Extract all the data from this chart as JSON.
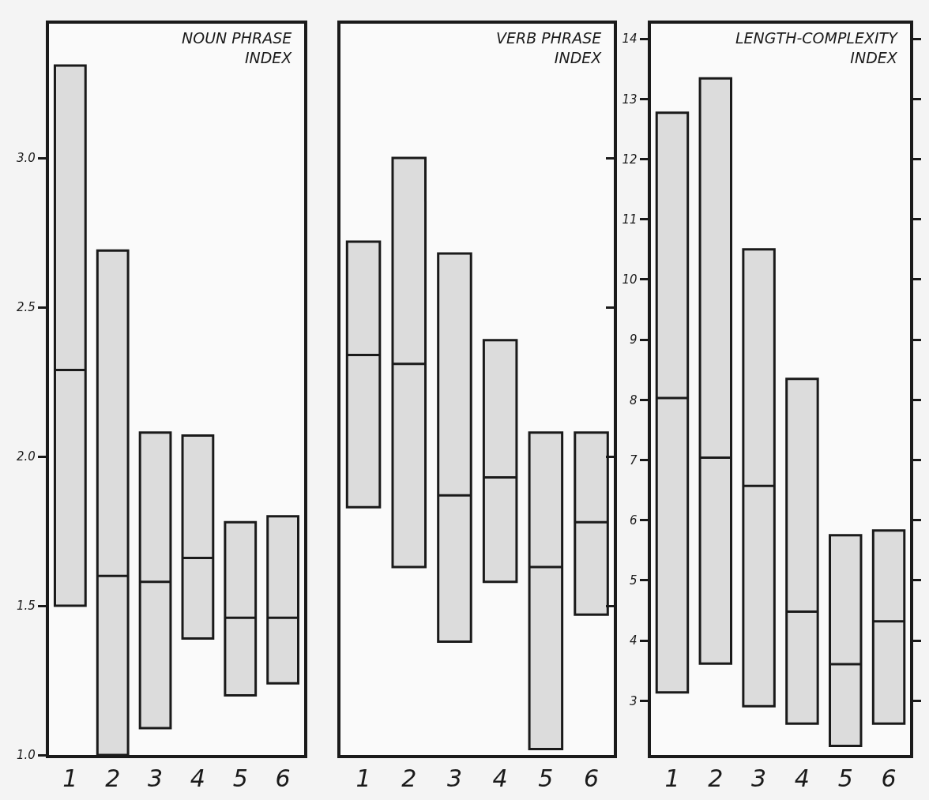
{
  "chart_data": [
    {
      "type": "box",
      "title": "NOUN PHRASE INDEX",
      "categories": [
        "1",
        "2",
        "3",
        "4",
        "5",
        "6"
      ],
      "color": "#dcdcdc",
      "boxes": [
        {
          "low": 1.5,
          "q1": 1.5,
          "median": 2.29,
          "q3": 3.31,
          "high": 3.31
        },
        {
          "low": 1.0,
          "q1": 1.0,
          "median": 1.6,
          "q3": 2.69,
          "high": 2.69
        },
        {
          "low": 1.09,
          "q1": 1.09,
          "median": 1.58,
          "q3": 2.08,
          "high": 2.08
        },
        {
          "low": 1.39,
          "q1": 1.39,
          "median": 1.66,
          "q3": 2.07,
          "high": 2.07
        },
        {
          "low": 1.2,
          "q1": 1.2,
          "median": 1.46,
          "q3": 1.78,
          "high": 1.78
        },
        {
          "low": 1.24,
          "q1": 1.24,
          "median": 1.46,
          "q3": 1.8,
          "high": 1.8
        }
      ],
      "ylim": [
        1.0,
        3.45
      ],
      "yticks": [
        {
          "value": 1.0,
          "label": "1.0"
        },
        {
          "value": 1.5,
          "label": "1.5"
        },
        {
          "value": 2.0,
          "label": "2.0"
        },
        {
          "value": 2.5,
          "label": "2.5"
        },
        {
          "value": 3.0,
          "label": "3.0"
        }
      ]
    },
    {
      "type": "box",
      "title": "VERB PHRASE INDEX",
      "categories": [
        "1",
        "2",
        "3",
        "4",
        "5",
        "6"
      ],
      "color": "#dcdcdc",
      "boxes": [
        {
          "low": 1.83,
          "q1": 1.83,
          "median": 2.34,
          "q3": 2.72,
          "high": 2.72
        },
        {
          "low": 1.63,
          "q1": 1.63,
          "median": 2.31,
          "q3": 3.0,
          "high": 3.0
        },
        {
          "low": 1.38,
          "q1": 1.38,
          "median": 1.87,
          "q3": 2.68,
          "high": 2.68
        },
        {
          "low": 1.58,
          "q1": 1.58,
          "median": 1.93,
          "q3": 2.39,
          "high": 2.39
        },
        {
          "low": 1.02,
          "q1": 1.02,
          "median": 1.63,
          "q3": 2.08,
          "high": 2.08
        },
        {
          "low": 1.47,
          "q1": 1.47,
          "median": 1.78,
          "q3": 2.08,
          "high": 2.08
        }
      ],
      "ylim": [
        1.0,
        3.45
      ],
      "yticks": [
        1.5,
        2.0,
        2.5,
        3.0
      ],
      "tick_labels": "x"
    },
    {
      "type": "box",
      "title": "LENGTH-COMPLEXITY INDEX",
      "categories": [
        "1",
        "2",
        "3",
        "4",
        "5",
        "6"
      ],
      "color": "#dcdcdc",
      "boxes": [
        {
          "low": 3.14,
          "q1": 3.14,
          "median": 8.03,
          "q3": 12.77,
          "high": 12.77
        },
        {
          "low": 3.62,
          "q1": 3.62,
          "median": 7.04,
          "q3": 13.34,
          "high": 13.34
        },
        {
          "low": 2.91,
          "q1": 2.91,
          "median": 6.57,
          "q3": 10.5,
          "high": 10.5
        },
        {
          "low": 2.62,
          "q1": 2.62,
          "median": 4.48,
          "q3": 8.35,
          "high": 8.35
        },
        {
          "low": 2.25,
          "q1": 2.25,
          "median": 3.61,
          "q3": 5.75,
          "high": 5.75
        },
        {
          "low": 2.62,
          "q1": 2.62,
          "median": 4.32,
          "q3": 5.83,
          "high": 5.83
        }
      ],
      "ylim": [
        2.1,
        14.25
      ],
      "yticks": [
        3,
        4,
        5,
        6,
        7,
        8,
        9,
        10,
        11,
        12,
        13,
        14
      ]
    }
  ]
}
